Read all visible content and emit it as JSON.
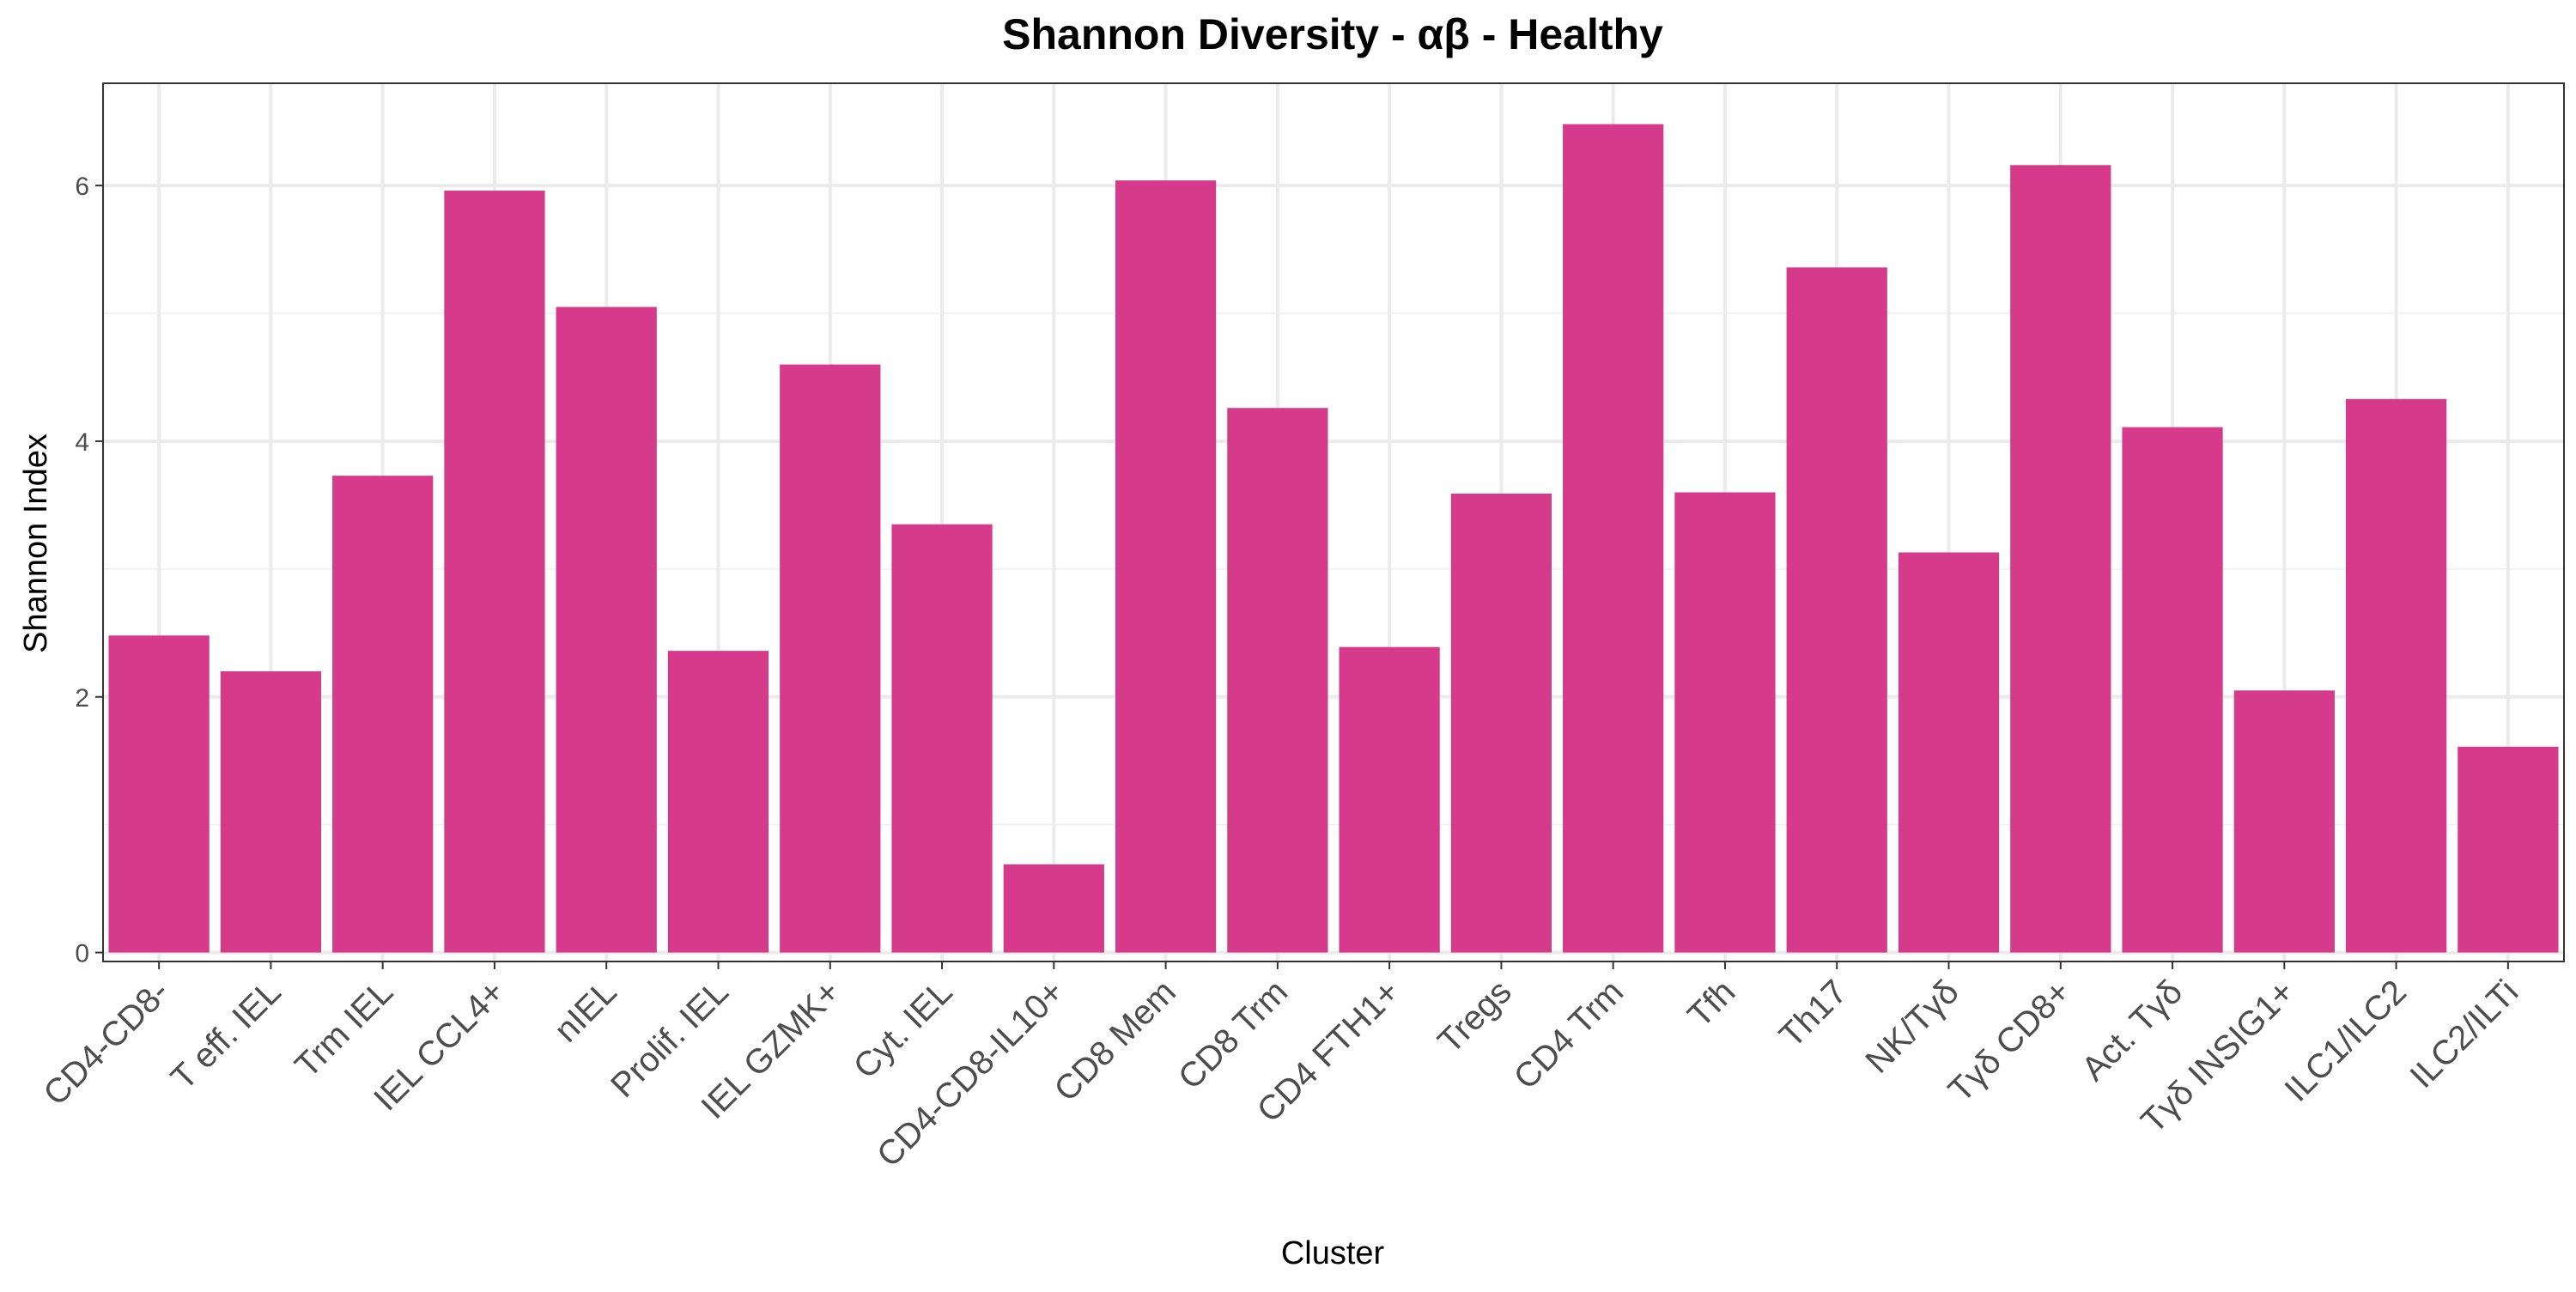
{
  "chart_data": {
    "type": "bar",
    "title": "Shannon Diversity - αβ - Healthy",
    "xlabel": "Cluster",
    "ylabel": "Shannon Index",
    "ylim": [
      -0.07,
      6.8
    ],
    "yticks": [
      0,
      2,
      4,
      6
    ],
    "grid": true,
    "bar_color": "#D63A8A",
    "categories": [
      "CD4-CD8-",
      "T eff. IEL",
      "Trm IEL",
      "IEL CCL4+",
      "nIEL",
      "Prolif. IEL",
      "IEL GZMK+",
      "Cyt. IEL",
      "CD4-CD8-IL10+",
      "CD8 Mem",
      "CD8 Trm",
      "CD4 FTH1+",
      "Tregs",
      "CD4 Trm",
      "Tfh",
      "Th17",
      "NK/Tγδ",
      "Tγδ CD8+",
      "Act. Tγδ",
      "Tγδ INSIG1+",
      "ILC1/ILC2",
      "ILC2/ILTi"
    ],
    "values": [
      2.48,
      2.2,
      3.73,
      5.96,
      5.05,
      2.36,
      4.6,
      3.35,
      0.69,
      6.04,
      4.26,
      2.39,
      3.59,
      6.48,
      3.6,
      5.36,
      3.13,
      6.16,
      4.11,
      2.05,
      4.33,
      1.61
    ]
  }
}
